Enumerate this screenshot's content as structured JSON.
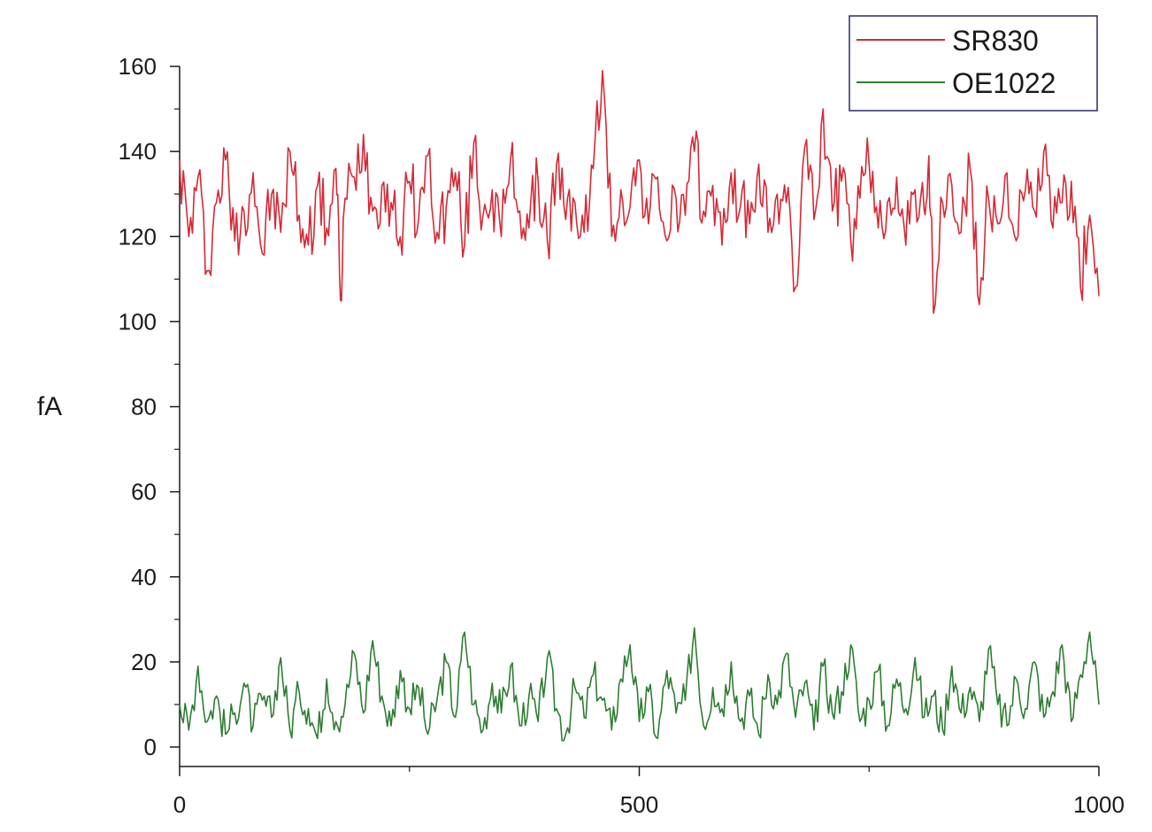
{
  "chart_data": {
    "type": "line",
    "ylabel": "fA",
    "xlabel": "",
    "xlim": [
      0,
      1000
    ],
    "ylim": [
      0,
      160
    ],
    "x_ticks": [
      0,
      500,
      1000
    ],
    "x_minor_ticks": [
      250,
      750
    ],
    "y_ticks": [
      0,
      20,
      40,
      60,
      80,
      100,
      120,
      140,
      160
    ],
    "grid": false,
    "legend_position": "top-right",
    "series": [
      {
        "name": "SR830",
        "color": "#d42a36",
        "x": [
          0,
          10,
          20,
          30,
          40,
          50,
          60,
          70,
          80,
          90,
          100,
          110,
          120,
          130,
          140,
          150,
          160,
          170,
          175,
          180,
          190,
          200,
          210,
          220,
          230,
          240,
          250,
          260,
          270,
          280,
          290,
          300,
          310,
          320,
          330,
          340,
          350,
          360,
          370,
          380,
          390,
          400,
          410,
          420,
          430,
          440,
          450,
          460,
          470,
          480,
          490,
          500,
          510,
          520,
          530,
          540,
          550,
          560,
          570,
          580,
          590,
          600,
          610,
          620,
          630,
          640,
          650,
          660,
          670,
          680,
          690,
          700,
          710,
          720,
          730,
          740,
          750,
          760,
          770,
          780,
          790,
          800,
          810,
          815,
          820,
          830,
          840,
          850,
          860,
          870,
          880,
          890,
          900,
          910,
          920,
          930,
          940,
          950,
          960,
          970,
          980,
          990,
          1000
        ],
        "y": [
          138,
          120,
          134,
          112,
          128,
          138,
          119,
          126,
          135,
          116,
          130,
          121,
          140,
          125,
          118,
          132,
          122,
          136,
          105,
          129,
          134,
          144,
          126,
          132,
          128,
          120,
          133,
          124,
          139,
          121,
          127,
          135,
          118,
          142,
          125,
          131,
          120,
          138,
          126,
          122,
          133,
          119,
          137,
          124,
          128,
          121,
          136,
          159,
          120,
          131,
          127,
          138,
          123,
          134,
          119,
          129,
          125,
          140,
          126,
          132,
          118,
          135,
          127,
          123,
          137,
          121,
          130,
          128,
          108,
          141,
          124,
          150,
          126,
          133,
          119,
          129,
          137,
          122,
          128,
          134,
          118,
          131,
          126,
          139,
          102,
          128,
          132,
          121,
          136,
          104,
          129,
          123,
          135,
          119,
          131,
          126,
          140,
          122,
          128,
          133,
          108,
          125,
          106
        ]
      },
      {
        "name": "OE1022",
        "color": "#2e7d32",
        "x": [
          0,
          10,
          20,
          30,
          40,
          50,
          60,
          70,
          80,
          90,
          100,
          110,
          120,
          130,
          140,
          150,
          160,
          170,
          180,
          190,
          200,
          210,
          220,
          230,
          240,
          250,
          260,
          270,
          280,
          290,
          300,
          310,
          320,
          330,
          340,
          350,
          360,
          370,
          380,
          390,
          400,
          410,
          420,
          430,
          440,
          450,
          460,
          470,
          480,
          490,
          500,
          510,
          520,
          530,
          540,
          550,
          560,
          570,
          580,
          590,
          600,
          610,
          620,
          630,
          640,
          650,
          660,
          670,
          680,
          690,
          700,
          710,
          720,
          730,
          740,
          750,
          760,
          770,
          780,
          790,
          800,
          810,
          820,
          830,
          840,
          850,
          860,
          870,
          880,
          890,
          900,
          910,
          920,
          930,
          940,
          950,
          960,
          970,
          980,
          990,
          1000
        ],
        "y": [
          10,
          4,
          19,
          6,
          12,
          3,
          8,
          15,
          5,
          11,
          7,
          21,
          4,
          13,
          9,
          2,
          16,
          6,
          10,
          22,
          8,
          25,
          12,
          5,
          18,
          9,
          14,
          3,
          11,
          20,
          7,
          27,
          10,
          4,
          15,
          8,
          19,
          5,
          12,
          6,
          21,
          9,
          3,
          14,
          7,
          17,
          11,
          4,
          16,
          24,
          6,
          13,
          2,
          18,
          8,
          11,
          28,
          5,
          14,
          9,
          20,
          6,
          12,
          3,
          17,
          10,
          22,
          7,
          15,
          4,
          19,
          8,
          13,
          24,
          6,
          11,
          18,
          5,
          16,
          9,
          21,
          7,
          12,
          4,
          19,
          8,
          14,
          6,
          23,
          10,
          5,
          16,
          9,
          20,
          7,
          13,
          24,
          6,
          17,
          27,
          10
        ]
      }
    ]
  }
}
